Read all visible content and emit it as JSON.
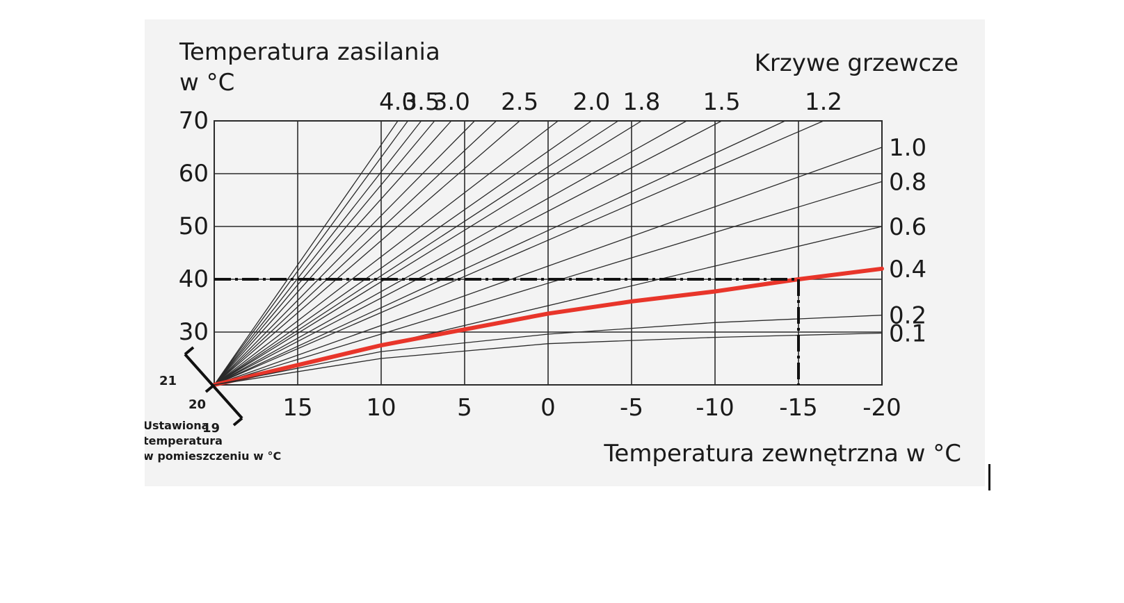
{
  "chart_data": {
    "type": "line",
    "title": "Krzywe grzewcze",
    "ylabel_line1": "Temperatura zasilania",
    "ylabel_line2": "w °C",
    "xlabel": "Temperatura zewnętrzna w °C",
    "xlim": [
      20,
      -20
    ],
    "ylim": [
      20,
      70
    ],
    "x_ticks": [
      "15",
      "10",
      "5",
      "0",
      "-5",
      "-10",
      "-15",
      "-20"
    ],
    "y_ticks": [
      "70",
      "60",
      "50",
      "40",
      "30"
    ],
    "grid": true,
    "origin": {
      "x": 20,
      "y": 20
    },
    "curves": [
      {
        "name": "4.0",
        "label_position": "top",
        "points": [
          [
            20,
            20
          ],
          [
            9,
            70
          ]
        ]
      },
      {
        "name": "",
        "label_position": "none",
        "points": [
          [
            20,
            20
          ],
          [
            8.4,
            70
          ]
        ]
      },
      {
        "name": "3.5",
        "label_position": "top",
        "points": [
          [
            20,
            20
          ],
          [
            7.6,
            70
          ]
        ]
      },
      {
        "name": "",
        "label_position": "none",
        "points": [
          [
            20,
            20
          ],
          [
            6.8,
            70
          ]
        ]
      },
      {
        "name": "3.0",
        "label_position": "top",
        "points": [
          [
            20,
            20
          ],
          [
            5.8,
            70
          ]
        ]
      },
      {
        "name": "",
        "label_position": "none",
        "points": [
          [
            20,
            20
          ],
          [
            4.4,
            70
          ]
        ]
      },
      {
        "name": "",
        "label_position": "none",
        "points": [
          [
            20,
            20
          ],
          [
            3.1,
            70
          ]
        ]
      },
      {
        "name": "2.5",
        "label_position": "top",
        "points": [
          [
            20,
            20
          ],
          [
            1.7,
            70
          ]
        ]
      },
      {
        "name": "",
        "label_position": "none",
        "points": [
          [
            20,
            20
          ],
          [
            -0.6,
            70
          ]
        ]
      },
      {
        "name": "2.0",
        "label_position": "top",
        "points": [
          [
            20,
            20
          ],
          [
            -2.6,
            70
          ]
        ]
      },
      {
        "name": "",
        "label_position": "none",
        "points": [
          [
            20,
            20
          ],
          [
            -4.2,
            70
          ]
        ]
      },
      {
        "name": "1.8",
        "label_position": "top",
        "points": [
          [
            20,
            20
          ],
          [
            -5.6,
            70
          ]
        ]
      },
      {
        "name": "",
        "label_position": "none",
        "points": [
          [
            20,
            20
          ],
          [
            -8.3,
            70
          ]
        ]
      },
      {
        "name": "1.5",
        "label_position": "top",
        "points": [
          [
            20,
            20
          ],
          [
            -10.4,
            70
          ]
        ]
      },
      {
        "name": "",
        "label_position": "none",
        "points": [
          [
            20,
            20
          ],
          [
            -14.2,
            70
          ]
        ]
      },
      {
        "name": "1.2",
        "label_position": "top",
        "points": [
          [
            20,
            20
          ],
          [
            -16.5,
            70
          ]
        ]
      },
      {
        "name": "1.0",
        "label_position": "right",
        "points": [
          [
            20,
            20
          ],
          [
            -20,
            65
          ]
        ]
      },
      {
        "name": "0.8",
        "label_position": "right",
        "points": [
          [
            20,
            20
          ],
          [
            -20,
            58.5
          ]
        ]
      },
      {
        "name": "0.6",
        "label_position": "right",
        "points": [
          [
            20,
            20
          ],
          [
            -20,
            50
          ]
        ]
      },
      {
        "name": "0.4",
        "label_position": "right",
        "highlighted": true,
        "color": "#e8352a",
        "points": [
          [
            20,
            20
          ],
          [
            10,
            27.5
          ],
          [
            5,
            30.5
          ],
          [
            0,
            33.5
          ],
          [
            -5,
            35.8
          ],
          [
            -10,
            37.7
          ],
          [
            -15,
            40
          ],
          [
            -20,
            42
          ]
        ]
      },
      {
        "name": "0.2",
        "label_position": "right",
        "points": [
          [
            20,
            20
          ],
          [
            10,
            26.3
          ],
          [
            0,
            29.6
          ],
          [
            -10,
            31.8
          ],
          [
            -20,
            33.2
          ]
        ]
      },
      {
        "name": "0.1",
        "label_position": "right",
        "points": [
          [
            20,
            20
          ],
          [
            10,
            25
          ],
          [
            0,
            27.8
          ],
          [
            -10,
            29
          ],
          [
            -20,
            29.8
          ]
        ]
      }
    ],
    "reference_lines": [
      {
        "type": "horizontal",
        "y": 40,
        "from_x": 20,
        "to_x": -15,
        "style": "dash-dot"
      },
      {
        "type": "vertical",
        "x": -15,
        "from_y": 40,
        "to_y": 20,
        "style": "dash-dot"
      }
    ],
    "room_temperature_scale": {
      "ticks": [
        "21",
        "20",
        "19"
      ],
      "label_lines": [
        "Ustawiona",
        "temperatura",
        "w pomieszczeniu w °C"
      ]
    },
    "colors": {
      "grid": "#2a2a2a",
      "curve": "#2a2a2a",
      "highlight": "#e8352a",
      "reference": "#111111",
      "background": "#f3f3f3"
    }
  }
}
